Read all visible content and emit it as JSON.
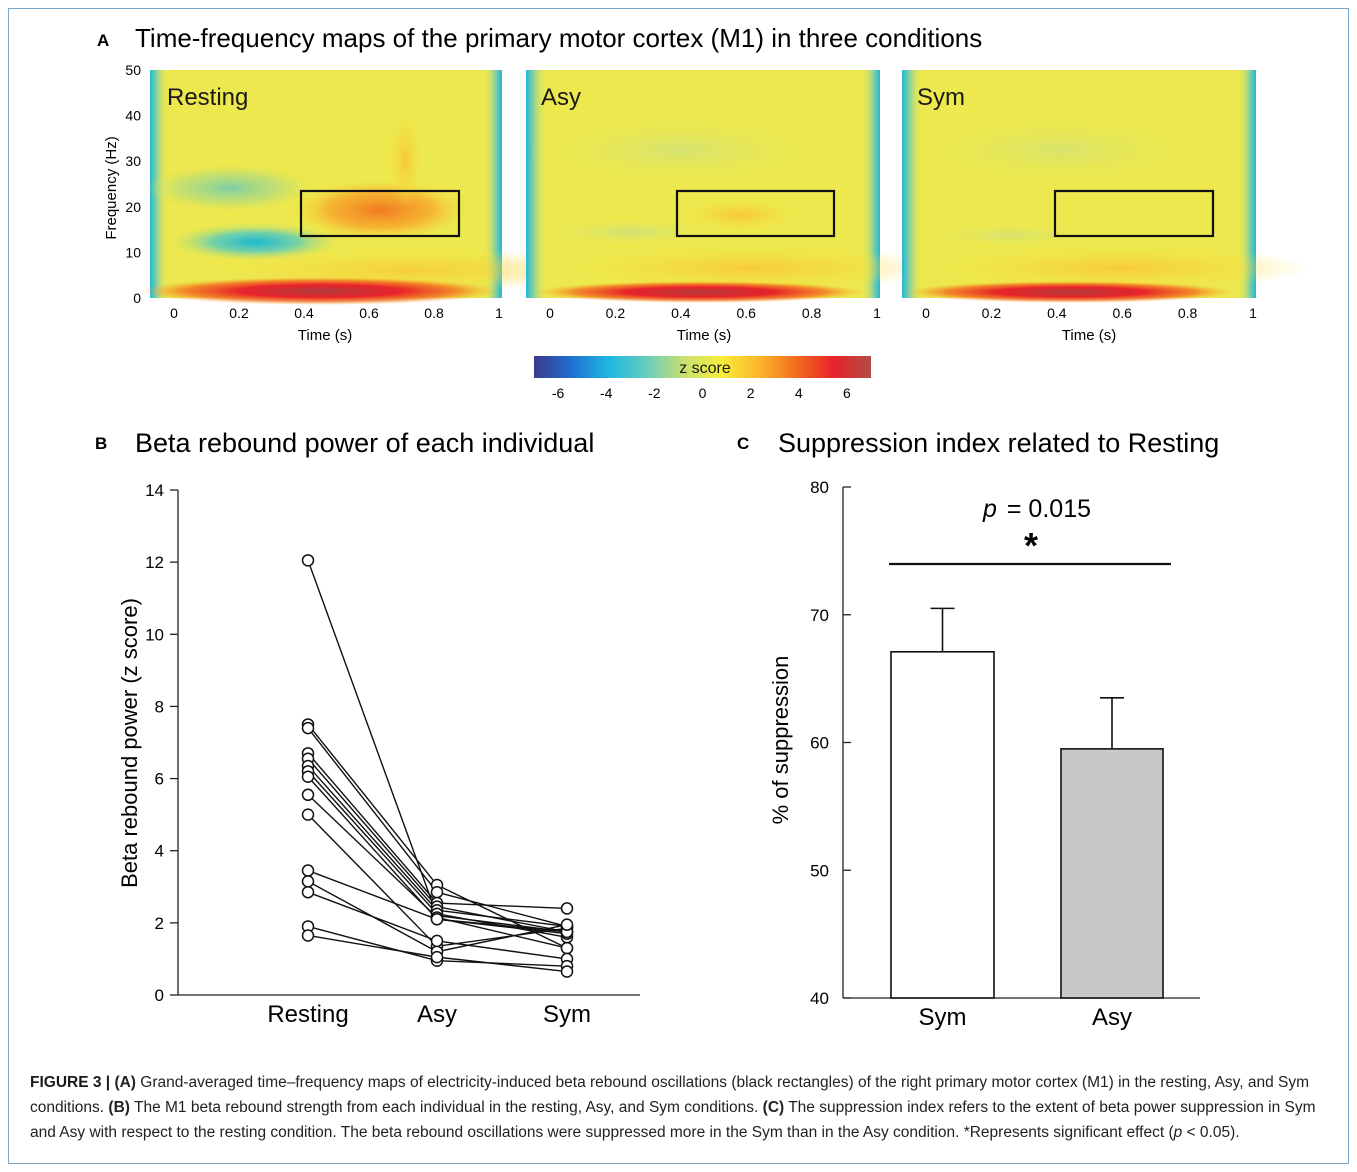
{
  "panel_a": {
    "letter": "A",
    "title": "Time-frequency maps of the primary motor cortex (M1) in three conditions",
    "ylabel": "Frequency (Hz)",
    "xlabel": "Time (s)",
    "yticks": [
      "0",
      "10",
      "20",
      "30",
      "40",
      "50"
    ],
    "xticks": [
      "0",
      "0.2",
      "0.4",
      "0.6",
      "0.8",
      "1"
    ],
    "maps": [
      {
        "label": "Resting"
      },
      {
        "label": "Asy"
      },
      {
        "label": "Sym"
      }
    ],
    "colorbar": {
      "label": "z score",
      "ticks": [
        "-6",
        "-4",
        "-2",
        "0",
        "2",
        "4",
        "6"
      ],
      "range": [
        -7,
        7
      ],
      "colors": [
        "#3a3a8c",
        "#1f6fd1",
        "#1fb7e0",
        "#66cdbf",
        "#c8e070",
        "#f7ee3a",
        "#fbb62a",
        "#f36d1e",
        "#e8232a",
        "#b04e48"
      ]
    }
  },
  "chart_data": [
    {
      "type": "line",
      "panel_letter": "B",
      "title": "Beta rebound power of each individual",
      "xlabel": "",
      "ylabel": "Beta rebound power (z score)",
      "categories": [
        "Resting",
        "Asy",
        "Sym"
      ],
      "ylim": [
        0,
        14
      ],
      "yticks": [
        "0",
        "2",
        "4",
        "6",
        "8",
        "10",
        "12",
        "14"
      ],
      "series": [
        {
          "values": [
            12.05,
            2.2,
            1.75
          ]
        },
        {
          "values": [
            7.5,
            3.05,
            1.3
          ]
        },
        {
          "values": [
            7.4,
            2.85,
            1.9
          ]
        },
        {
          "values": [
            6.7,
            2.55,
            2.4
          ]
        },
        {
          "values": [
            6.55,
            2.45,
            1.75
          ]
        },
        {
          "values": [
            6.35,
            2.35,
            1.9
          ]
        },
        {
          "values": [
            6.2,
            2.25,
            1.6
          ]
        },
        {
          "values": [
            6.05,
            2.1,
            1.7
          ]
        },
        {
          "values": [
            5.55,
            2.15,
            1.3
          ]
        },
        {
          "values": [
            5.0,
            1.35,
            1.85
          ]
        },
        {
          "values": [
            3.45,
            2.1,
            1.75
          ]
        },
        {
          "values": [
            3.15,
            1.2,
            1.95
          ]
        },
        {
          "values": [
            2.85,
            1.5,
            1.0
          ]
        },
        {
          "values": [
            1.9,
            0.95,
            0.8
          ]
        },
        {
          "values": [
            1.65,
            1.05,
            0.65
          ]
        }
      ]
    },
    {
      "type": "bar",
      "panel_letter": "C",
      "title": "Suppression index related to Resting",
      "xlabel": "",
      "ylabel": "% of suppression",
      "categories": [
        "Sym",
        "Asy"
      ],
      "values": [
        67.1,
        59.5
      ],
      "errors": [
        3.4,
        4.0
      ],
      "colors": [
        "#ffffff",
        "#c8c8c8"
      ],
      "ylim": [
        40,
        80
      ],
      "yticks": [
        "40",
        "50",
        "60",
        "70",
        "80"
      ],
      "annotation": {
        "p_symbol": "p",
        "p_text": "= 0.015",
        "star": "*"
      }
    }
  ],
  "caption": {
    "label": "FIGURE 3 | ",
    "a_tag": "(A)",
    "a_text": " Grand-averaged time–frequency maps of electricity-induced beta rebound oscillations (black rectangles) of the right primary motor cortex (M1) in the resting, Asy, and Sym conditions. ",
    "b_tag": "(B)",
    "b_text": " The M1 beta rebound strength from each individual in the resting, Asy, and Sym conditions. ",
    "c_tag": "(C)",
    "c_text": " The suppression index refers to the extent of beta power suppression in Sym and Asy with respect to the resting condition. The beta rebound oscillations were suppressed more in the Sym than in the Asy condition. *Represents significant effect (",
    "p_symbol": "p",
    "end_text": " < 0.05)."
  }
}
